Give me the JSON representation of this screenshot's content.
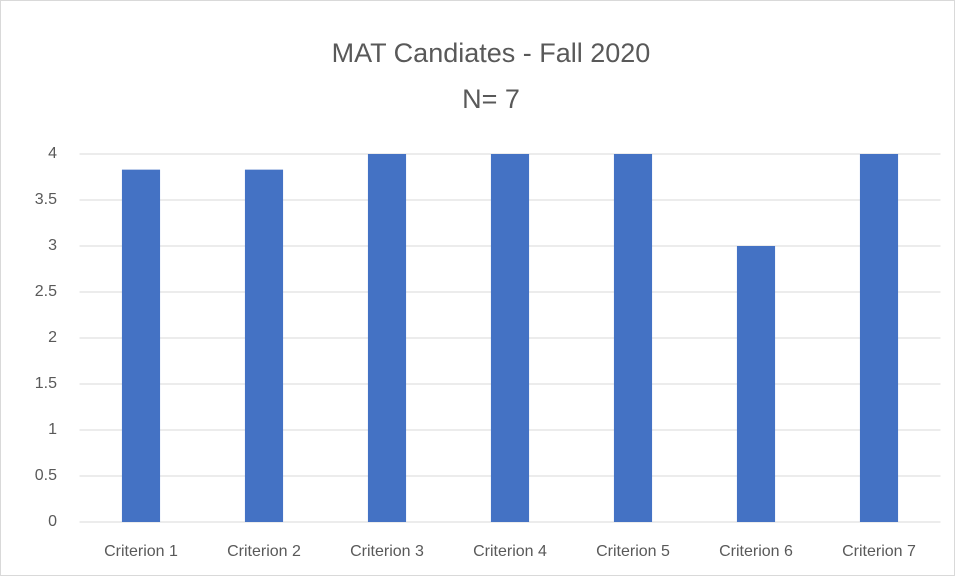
{
  "chart_data": {
    "type": "bar",
    "title": "MAT Candiates - Fall 2020",
    "subtitle": "N= 7",
    "categories": [
      "Criterion 1",
      "Criterion 2",
      "Criterion 3",
      "Criterion 4",
      "Criterion 5",
      "Criterion 6",
      "Criterion 7"
    ],
    "values": [
      3.83,
      3.83,
      4,
      4,
      4,
      3,
      4
    ],
    "color": "#4472c4",
    "ylim": [
      0,
      4
    ],
    "yticks": [
      0,
      0.5,
      1,
      1.5,
      2,
      2.5,
      3,
      3.5,
      4
    ],
    "grid": true
  }
}
